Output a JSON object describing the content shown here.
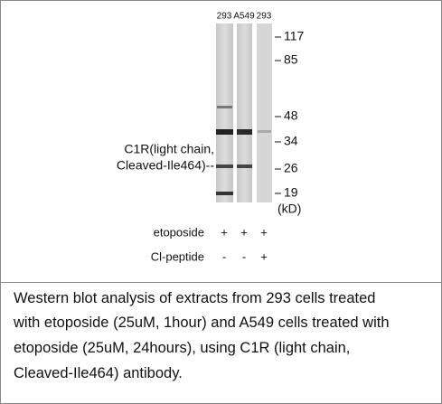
{
  "lanes": [
    "293",
    "A549",
    "293"
  ],
  "markers": [
    "117",
    "85",
    "48",
    "34",
    "26",
    "19"
  ],
  "kd_label": "(kD)",
  "target_label": [
    "C1R(light chain,",
    "Cleaved-Ile464)--"
  ],
  "treatments": [
    {
      "name": "etoposide",
      "marks": [
        "+",
        "+",
        "+"
      ]
    },
    {
      "name": "Cl-peptide",
      "marks": [
        "-",
        "-",
        "+"
      ]
    }
  ],
  "caption": [
    "Western blot analysis of extracts from 293 cells treated",
    "with etoposide (25uM, 1hour) and A549 cells treated with",
    "etoposide (25uM, 24hours), using C1R (light chain,",
    "Cleaved-Ile464) antibody."
  ]
}
